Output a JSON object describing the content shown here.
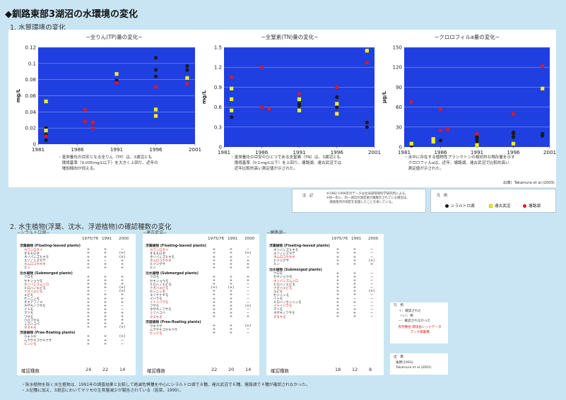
{
  "title": "◆釧路東部3湖沼の水環境の変化",
  "section1": "1. 水質環境の変化",
  "section2": "2. 水生植物(浮葉、沈水、浮遊植物)の確認種数の変化",
  "colors": {
    "shiraruto": "#1a1a1a",
    "takkobu": "#f5ef17",
    "toro": "#e8141c",
    "plot_bg": "#1f3fe0"
  },
  "chart_data": [
    {
      "type": "scatter",
      "title": "−全りん(TP)量の変化−",
      "ylabel": "mg/L",
      "xlim": [
        1981,
        2001
      ],
      "ylim": [
        0,
        0.12
      ],
      "xticks": [
        "1981",
        "1986",
        "1991",
        "1996",
        "2001"
      ],
      "yticks": [
        "0",
        "0.02",
        "0.04",
        "0.06",
        "0.08",
        "0.1",
        "0.12"
      ],
      "series": [
        {
          "name": "シラルトロ湖",
          "points": [
            [
              1982,
              0.005
            ],
            [
              1982,
              0.012
            ],
            [
              1982,
              0.02
            ],
            [
              1991,
              0.077
            ],
            [
              1991,
              0.079
            ],
            [
              1996,
              0.107
            ],
            [
              1996,
              0.092
            ],
            [
              1996,
              0.084
            ],
            [
              2000,
              0.097
            ],
            [
              2000,
              0.092
            ]
          ]
        },
        {
          "name": "達古武沼",
          "points": [
            [
              1982,
              0.053
            ],
            [
              1982,
              0.017
            ],
            [
              1991,
              0.087
            ],
            [
              1996,
              0.043
            ],
            [
              1996,
              0.035
            ],
            [
              2000,
              0.082
            ]
          ]
        },
        {
          "name": "塘路湖",
          "points": [
            [
              1982,
              0.01
            ],
            [
              1987,
              0.043
            ],
            [
              1987,
              0.028
            ],
            [
              1988,
              0.027
            ],
            [
              1988,
              0.02
            ],
            [
              1991,
              0.076
            ],
            [
              1996,
              0.071
            ],
            [
              2000,
              0.075
            ]
          ]
        }
      ]
    },
    {
      "type": "scatter",
      "title": "−全窒素(TN)量の変化−",
      "ylabel": "mg/L",
      "xlim": [
        1981,
        2001
      ],
      "ylim": [
        0,
        1.5
      ],
      "xticks": [
        "1981",
        "1986",
        "1991",
        "1996",
        "2001"
      ],
      "yticks": [
        "0",
        "0.3",
        "0.6",
        "0.9",
        "1.2",
        "1.5"
      ],
      "series": [
        {
          "name": "シラルトロ湖",
          "points": [
            [
              1982,
              0.45
            ],
            [
              1982,
              0.72
            ],
            [
              1986,
              0.6
            ],
            [
              1991,
              0.65
            ],
            [
              1991,
              0.62
            ],
            [
              1996,
              0.75
            ],
            [
              1996,
              0.6
            ],
            [
              2000,
              0.37
            ],
            [
              2000,
              0.3
            ]
          ]
        },
        {
          "name": "達古武沼",
          "points": [
            [
              1982,
              0.88
            ],
            [
              1982,
              0.72
            ],
            [
              1982,
              0.55
            ],
            [
              1991,
              0.72
            ],
            [
              1991,
              0.55
            ],
            [
              1996,
              0.65
            ],
            [
              1996,
              0.5
            ],
            [
              2000,
              1.45
            ]
          ]
        },
        {
          "name": "塘路湖",
          "points": [
            [
              1982,
              1.05
            ],
            [
              1986,
              1.2
            ],
            [
              1986,
              0.6
            ],
            [
              1987,
              0.57
            ],
            [
              1991,
              0.8
            ],
            [
              1996,
              0.9
            ],
            [
              2000,
              1.27
            ]
          ]
        }
      ]
    },
    {
      "type": "scatter",
      "title": "−クロロフィルa量の変化−",
      "ylabel": "μg/L",
      "xlim": [
        1981,
        2001
      ],
      "ylim": [
        0,
        150
      ],
      "xticks": [
        "1981",
        "1986",
        "1991",
        "1996",
        "2001"
      ],
      "yticks": [
        "0",
        "30",
        "60",
        "90",
        "120",
        "150"
      ],
      "series": [
        {
          "name": "シラルトロ湖",
          "points": [
            [
              1982,
              2
            ],
            [
              1986,
              10
            ],
            [
              1991,
              8
            ],
            [
              1991,
              12
            ],
            [
              1991,
              15
            ],
            [
              1996,
              15
            ],
            [
              1996,
              20
            ],
            [
              1996,
              22
            ],
            [
              2000,
              17
            ],
            [
              2000,
              20
            ]
          ]
        },
        {
          "name": "達古武沼",
          "points": [
            [
              1982,
              5
            ],
            [
              1985,
              12
            ],
            [
              1985,
              8
            ],
            [
              1991,
              3
            ],
            [
              1996,
              5
            ],
            [
              2000,
              88
            ]
          ]
        },
        {
          "name": "塘路湖",
          "points": [
            [
              1982,
              68
            ],
            [
              1986,
              57
            ],
            [
              1986,
              25
            ],
            [
              1987,
              27
            ],
            [
              1991,
              20
            ],
            [
              1996,
              50
            ],
            [
              2000,
              122
            ]
          ]
        }
      ]
    }
  ],
  "captions": [
    "・富栄養化の目安となる全りん（TP）は、3湖沼とも\n　環境基準（0.005mg/L以下）を大きく上回り、近年の\n　増加傾向が伺える。",
    "・富栄養化の目安のひとつである全窒素（TN）は、3湖沼とも\n　環境基準（0.1mg/L以下）を上回り、塘路湖、達古武沼では\n　近年比較的高い測定値が示された。",
    "・水中に存在する植物性プランクトンの相対的な現存量を示す\n　クロロフィルaは、近年、塘路湖、達古武沼で比較的高い\n　測定値が示された。"
  ],
  "source1": "出典）Takamura et al.(2003)",
  "note": {
    "label": "注　記",
    "text": "※1982-1996年のデータは北海道環境科学研究所による。\n※同一年に、同一湖沼の測定値が複数示されている場合は、\n　調査箇所の測定を実施したことを表している。"
  },
  "legend1": {
    "title": "凡　例",
    "items": [
      {
        "label": "シラルトロ湖",
        "shape": "circle",
        "color": "#1a1a1a"
      },
      {
        "label": "達古武沼",
        "shape": "square",
        "color": "#f5ef17"
      },
      {
        "label": "塘路湖",
        "shape": "circle",
        "color": "#e8141c"
      }
    ]
  },
  "tables": [
    {
      "lake": "−シラルトロ湖−",
      "years": [
        "1975/76",
        "1991",
        "2000"
      ],
      "groups": [
        {
          "name": "浮葉植物 (Floating-leaved plants)",
          "rows": [
            [
              "カワシロタイ",
              "+",
              "+",
              "−",
              "r"
            ],
            [
              "オモモロダ",
              "+",
              "+",
              "(+)",
              ""
            ],
            [
              "ホソバミズヒキモ",
              "+",
              "+",
              "(+)",
              ""
            ],
            [
              "エゾノミズタデ",
              "+",
              "−",
              "+",
              ""
            ],
            [
              "ネムロコウホネ",
              "+",
              "+",
              "+",
              "r"
            ],
            [
              "ヒシ",
              "+",
              "+",
              "+",
              ""
            ]
          ]
        },
        {
          "name": "沈水植物 (Submerged plants)",
          "rows": [
            [
              "クロモ",
              "+",
              "+",
              "+",
              ""
            ],
            [
              "セキショウモ",
              "+",
              "+",
              "+",
              ""
            ],
            [
              "ホソバミズムシロ",
              "+",
              "+",
              "+",
              "r"
            ],
            [
              "ヒロハノエビモ",
              "+",
              "+",
              "(+)",
              ""
            ],
            [
              "ナガバエビモ",
              "+",
              "−",
              "(+)",
              "r"
            ],
            [
              "エビモ",
              "+",
              "+",
              "+",
              ""
            ],
            [
              "センニンモ",
              "+",
              "+",
              "+",
              ""
            ],
            [
              "オオアブノメ",
              "+",
              "+",
              "+",
              ""
            ],
            [
              "ホザキノフサモ",
              "+",
              "+",
              "−",
              ""
            ],
            [
              "イトモ",
              "+",
              "+",
              "−",
              ""
            ],
            [
              "マツモ",
              "+",
              "+",
              "+",
              ""
            ],
            [
              "フサモ",
              "+",
              "+",
              "+",
              ""
            ],
            [
              "クロフサモ",
              "+",
              "+",
              "+",
              ""
            ],
            [
              "ミズハコベ",
              "+",
              "+",
              "+",
              ""
            ],
            [
              "タヌキモ",
              "+",
              "+",
              "(+)",
              "r"
            ]
          ]
        },
        {
          "name": "浮遊植物 (Free-floating plants)",
          "rows": [
            [
              "ウキクサ",
              "+",
              "+",
              "(+)",
              ""
            ],
            [
              "ムラサキコウキクサ",
              "+",
              "+",
              "−",
              ""
            ],
            [
              "ヒンジモ",
              "+",
              "+",
              "−",
              "r"
            ]
          ]
        }
      ],
      "total_label": "確認種数",
      "totals": [
        "24",
        "22",
        "14"
      ]
    },
    {
      "lake": "−達古武沼−",
      "years": [
        "1975/76",
        "1991",
        "2000"
      ],
      "groups": [
        {
          "name": "浮葉植物 (Floating-leaved plants)",
          "rows": [
            [
              "カワシロタイ",
              "+",
              "+",
              "−",
              "r"
            ],
            [
              "オモモロダ",
              "+",
              "+",
              "(+)",
              ""
            ],
            [
              "ホソバミズヒキモ",
              "+",
              "+",
              "−",
              ""
            ],
            [
              "ネムロコウホネ",
              "+",
              "+",
              "+",
              "r"
            ],
            [
              "ヒツジグサ",
              "+",
              "+",
              "+",
              ""
            ],
            [
              "ヒシ",
              "+",
              "+",
              "+",
              ""
            ]
          ]
        },
        {
          "name": "沈水植物 (Submerged plants)",
          "rows": [
            [
              "クロモ",
              "+",
              "+",
              "+",
              ""
            ],
            [
              "セキショウモ",
              "+",
              "+",
              "+",
              ""
            ],
            [
              "ヒロハノエビモ",
              "+",
              "+",
              "−",
              ""
            ],
            [
              "ナガバエビモ",
              "(+)",
              "(+)",
              "−",
              "r"
            ],
            [
              "センニンモ",
              "+",
              "+",
              "−",
              ""
            ],
            [
              "エゾヤナギモ",
              "+",
              "+",
              "−",
              ""
            ],
            [
              "イバラモ",
              "+",
              "+",
              "−",
              ""
            ],
            [
              "イトイバラモ",
              "+",
              "+",
              "−",
              "r"
            ],
            [
              "フサモ",
              "+",
              "+",
              "(+)",
              ""
            ],
            [
              "ホザキノフサモ",
              "+",
              "+",
              "−",
              ""
            ],
            [
              "ミゾハコベ",
              "+",
              "+",
              "−",
              ""
            ],
            [
              "タヌキモ",
              "+",
              "+",
              "+",
              "r"
            ]
          ]
        },
        {
          "name": "浮遊植物 (Free-floating plants)",
          "rows": [
            [
              "ウキクサ",
              "+",
              "+",
              "(+)",
              ""
            ],
            [
              "ムラサキコウキクサ",
              "+",
              "+",
              "−",
              ""
            ],
            [
              "ヒンジモ",
              "+",
              "+",
              "−",
              "r"
            ]
          ]
        }
      ],
      "total_label": "確認種数",
      "totals": [
        "22",
        "20",
        "14"
      ]
    },
    {
      "lake": "−塘路湖−",
      "years": [
        "1975/76",
        "1991",
        "2000"
      ],
      "groups": [
        {
          "name": "浮葉植物 (Floating-leaved plants)",
          "rows": [
            [
              "ホソバミズヒキモ",
              "+",
              "+",
              "−",
              ""
            ],
            [
              "エゾノミズタデ",
              "+",
              "+",
              "−",
              ""
            ],
            [
              "ネムロコウホネ",
              "+",
              "+",
              "−",
              "r"
            ],
            [
              "ヒツジグサ",
              "+",
              "+",
              "(+)",
              ""
            ],
            [
              "ヒシ",
              "+",
              "+",
              "+",
              ""
            ]
          ]
        },
        {
          "name": "沈水植物 (Submerged plants)",
          "rows": [
            [
              "クロモ",
              "+",
              "+",
              "−",
              ""
            ],
            [
              "セキショウモ",
              "+",
              "+",
              "−",
              ""
            ],
            [
              "ホソバミズムシロ",
              "+",
              "+",
              "−",
              "r"
            ],
            [
              "ヒロハノエビモ",
              "+",
              "+",
              "−",
              ""
            ],
            [
              "ナガバエビモ",
              "+",
              "+",
              "−",
              "r"
            ],
            [
              "エビモ",
              "+",
              "+",
              "(+)",
              ""
            ],
            [
              "センニンモ",
              "+",
              "+",
              "−",
              ""
            ],
            [
              "イトモ",
              "+",
              "−",
              "−",
              ""
            ],
            [
              "ヒロハノセンニンモ",
              "+",
              "+",
              "−",
              ""
            ],
            [
              "イトイバラモ",
              "+",
              "−",
              "−",
              "r"
            ],
            [
              "マツモ",
              "+",
              "+",
              "−",
              ""
            ],
            [
              "ホザキノフサモ",
              "+",
              "+",
              "−",
              ""
            ],
            [
              "タヌキモ",
              "+",
              "+",
              "−",
              "r"
            ]
          ]
        }
      ],
      "total_label": "確認種数",
      "totals": [
        "18",
        "12",
        "8"
      ]
    }
  ],
  "legend2": {
    "title": "凡　例",
    "lines": [
      "＋：確認された",
      "（＋）：稀",
      "−：確認されなかった"
    ],
    "red_note": "赤字種名:環境省レッドデータ\nブック掲載種"
  },
  "source2": {
    "label": "出　典",
    "text": "角野(1993),\nTakamura et al.(2001)"
  },
  "footer": [
    "・除水植物を除く水生植物は、1991年の調査結果と比較して絶滅危惧種を中心にシラルトロ湖で８種、達古武沼で６種、塘路湖で４種が確認されなかった。",
    "・上記種に加え、3湖沼においてマリモの生育量減少が報告されている（若菜、1999）。"
  ]
}
